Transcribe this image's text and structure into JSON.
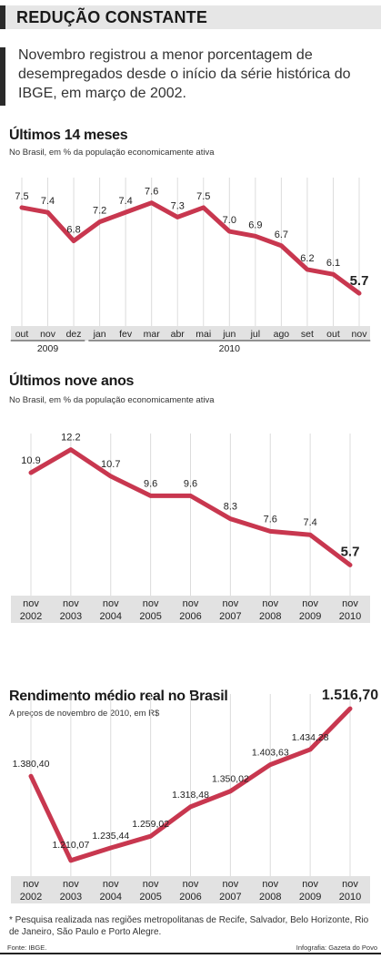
{
  "header": {
    "title": "REDUÇÃO CONSTANTE"
  },
  "lead": "Novembro registrou a menor porcentagem de desempregados desde o início da série histórica do IBGE, em março de 2002.",
  "colors": {
    "line": "#c8374f",
    "grid": "#dcdcdc",
    "axis_band": "#e2e2e2",
    "text": "#222222"
  },
  "chart_data": [
    {
      "type": "line",
      "title": "Últimos 14 meses",
      "subtitle": "No Brasil, em % da população economicamente ativa",
      "categories": [
        "out",
        "nov",
        "dez",
        "jan",
        "fev",
        "mar",
        "abr",
        "mai",
        "jun",
        "jul",
        "ago",
        "set",
        "out",
        "nov"
      ],
      "groups": [
        {
          "label": "2009",
          "from": 0,
          "to": 2
        },
        {
          "label": "2010",
          "from": 3,
          "to": 13
        }
      ],
      "values": [
        7.5,
        7.4,
        6.8,
        7.2,
        7.4,
        7.6,
        7.3,
        7.5,
        7.0,
        6.9,
        6.7,
        6.2,
        6.1,
        5.7
      ],
      "labels": [
        "7.5",
        "7.4",
        "6.8",
        "7.2",
        "7.4",
        "7.6",
        "7.3",
        "7.5",
        "7.0",
        "6.9",
        "6.7",
        "6.2",
        "6.1",
        "5.7"
      ],
      "ylim": [
        5.3,
        7.9
      ],
      "grid": true
    },
    {
      "type": "line",
      "title": "Últimos nove anos",
      "subtitle": "No Brasil, em % da população economicamente ativa",
      "categories": [
        "nov 2002",
        "nov 2003",
        "nov 2004",
        "nov 2005",
        "nov 2006",
        "nov 2007",
        "nov 2008",
        "nov 2009",
        "nov 2010"
      ],
      "values": [
        10.9,
        12.2,
        10.7,
        9.6,
        9.6,
        8.3,
        7.6,
        7.4,
        5.7
      ],
      "labels": [
        "10.9",
        "12.2",
        "10.7",
        "9.6",
        "9.6",
        "8.3",
        "7.6",
        "7.4",
        "5.7"
      ],
      "ylim": [
        5.0,
        12.8
      ],
      "grid": true
    },
    {
      "type": "line",
      "title": "Rendimento médio real no Brasil",
      "subtitle": "A preços de novembro de 2010, em R$",
      "categories": [
        "nov 2002",
        "nov 2003",
        "nov 2004",
        "nov 2005",
        "nov 2006",
        "nov 2007",
        "nov 2008",
        "nov 2009",
        "nov 2010"
      ],
      "values": [
        1380.4,
        1210.07,
        1235.44,
        1259.02,
        1318.48,
        1350.02,
        1403.63,
        1434.28,
        1516.7
      ],
      "labels": [
        "1.380,40",
        "1.210,07",
        "1.235,44",
        "1.259,02",
        "1.318,48",
        "1.350,02",
        "1.403,63",
        "1.434,28",
        "1.516,70"
      ],
      "ylim": [
        1195,
        1528
      ],
      "grid": true
    }
  ],
  "footnote": "* Pesquisa realizada nas regiões metropolitanas de Recife, Salvador, Belo Horizonte, Rio de Janeiro, São Paulo e Porto Alegre.",
  "source": "Fonte: IBGE.",
  "credit": "Infografia: Gazeta do Povo"
}
